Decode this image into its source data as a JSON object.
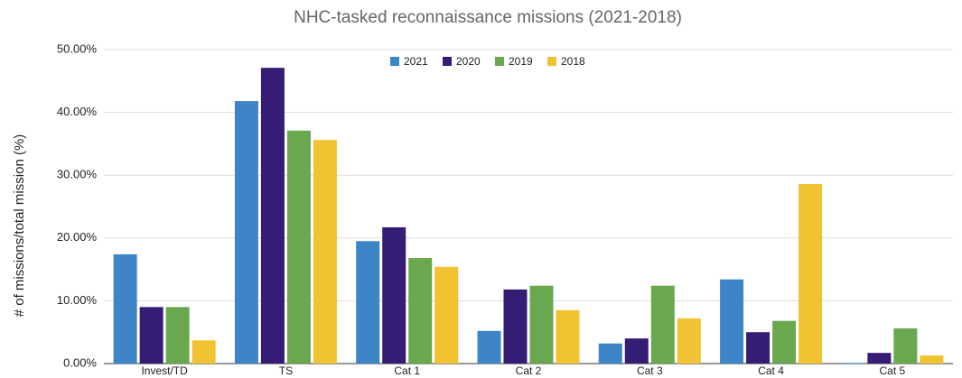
{
  "chart_data": {
    "type": "bar",
    "title": "NHC-tasked reconnaissance missions (2021-2018)",
    "y_label": "# of missions/total mission (%)",
    "categories": [
      "Invest/TD",
      "TS",
      "Cat 1",
      "Cat 2",
      "Cat 3",
      "Cat 4",
      "Cat 5"
    ],
    "series": [
      {
        "name": "2021",
        "color": "#3d85c6",
        "values": [
          17.4,
          41.8,
          19.5,
          5.2,
          3.2,
          13.4,
          0.1
        ]
      },
      {
        "name": "2020",
        "color": "#351c75",
        "values": [
          9.0,
          47.1,
          21.7,
          11.8,
          4.0,
          5.0,
          1.7
        ]
      },
      {
        "name": "2019",
        "color": "#6aa84f",
        "values": [
          9.0,
          37.1,
          16.8,
          12.4,
          12.4,
          6.8,
          5.6
        ]
      },
      {
        "name": "2018",
        "color": "#f1c232",
        "values": [
          3.7,
          35.6,
          15.4,
          8.5,
          7.2,
          28.6,
          1.3
        ]
      }
    ],
    "ylim": [
      0,
      50
    ],
    "yticks": [
      {
        "value": 0,
        "label": "0.00%"
      },
      {
        "value": 10,
        "label": "10.00%"
      },
      {
        "value": 20,
        "label": "20.00%"
      },
      {
        "value": 30,
        "label": "30.00%"
      },
      {
        "value": 40,
        "label": "40.00%"
      },
      {
        "value": 50,
        "label": "50.00%"
      }
    ],
    "grid": true,
    "legend": "top"
  }
}
